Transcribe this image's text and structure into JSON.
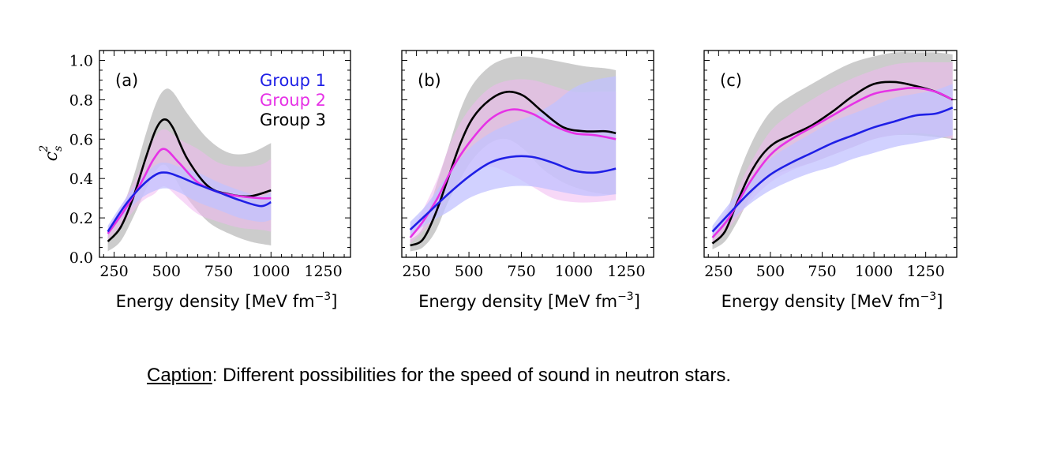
{
  "caption": {
    "label": "Caption",
    "text": ": Different possibilities for the speed of sound in neutron stars."
  },
  "y_label_main": "c",
  "y_label_sub": "s",
  "y_label_sup": "2",
  "colors": {
    "group1": "#1f1fe6",
    "group2": "#e632e6",
    "group3": "#000000"
  },
  "chart_data": [
    {
      "type": "line",
      "panel": "(a)",
      "xlabel": "Energy density [MeV fm",
      "xlabel_sup": "−3",
      "xlabel_end": "]",
      "xlim": [
        180,
        1380
      ],
      "ylim": [
        0.0,
        1.05
      ],
      "xticks": [
        250,
        500,
        750,
        1000,
        1250
      ],
      "yticks": [
        "0.0",
        "0.2",
        "0.4",
        "0.6",
        "0.8",
        "1.0"
      ],
      "legend": [
        "Group 1",
        "Group 2",
        "Group 3"
      ],
      "legend_position": "top-right",
      "series": [
        {
          "name": "Group 1",
          "color": "#1f1fe6",
          "x": [
            220,
            300,
            380,
            450,
            500,
            560,
            650,
            750,
            850,
            950,
            1000
          ],
          "y": [
            0.13,
            0.26,
            0.36,
            0.42,
            0.43,
            0.41,
            0.37,
            0.33,
            0.29,
            0.26,
            0.28
          ],
          "lower": [
            0.11,
            0.22,
            0.3,
            0.34,
            0.35,
            0.33,
            0.28,
            0.24,
            0.2,
            0.18,
            0.19
          ],
          "upper": [
            0.16,
            0.29,
            0.4,
            0.47,
            0.48,
            0.46,
            0.43,
            0.38,
            0.34,
            0.31,
            0.33
          ]
        },
        {
          "name": "Group 2",
          "color": "#e632e6",
          "x": [
            220,
            300,
            380,
            440,
            490,
            560,
            650,
            750,
            850,
            950,
            1000
          ],
          "y": [
            0.12,
            0.24,
            0.38,
            0.5,
            0.55,
            0.48,
            0.38,
            0.33,
            0.31,
            0.3,
            0.3
          ],
          "lower": [
            0.09,
            0.18,
            0.28,
            0.32,
            0.36,
            0.3,
            0.22,
            0.18,
            0.15,
            0.14,
            0.13
          ],
          "upper": [
            0.15,
            0.29,
            0.46,
            0.6,
            0.65,
            0.6,
            0.55,
            0.48,
            0.46,
            0.47,
            0.5
          ]
        },
        {
          "name": "Group 3",
          "color": "#000000",
          "x": [
            220,
            280,
            340,
            400,
            450,
            490,
            530,
            600,
            700,
            800,
            900,
            1000
          ],
          "y": [
            0.08,
            0.15,
            0.3,
            0.5,
            0.65,
            0.7,
            0.66,
            0.5,
            0.36,
            0.32,
            0.31,
            0.34
          ],
          "lower": [
            0.03,
            0.08,
            0.2,
            0.34,
            0.44,
            0.47,
            0.42,
            0.3,
            0.18,
            0.12,
            0.08,
            0.06
          ],
          "upper": [
            0.13,
            0.23,
            0.4,
            0.62,
            0.78,
            0.85,
            0.84,
            0.73,
            0.6,
            0.53,
            0.53,
            0.58
          ]
        }
      ]
    },
    {
      "type": "line",
      "panel": "(b)",
      "xlabel": "Energy density [MeV fm",
      "xlabel_sup": "−3",
      "xlabel_end": "]",
      "xlim": [
        180,
        1380
      ],
      "ylim": [
        0.0,
        1.05
      ],
      "xticks": [
        250,
        500,
        750,
        1000,
        1250
      ],
      "series": [
        {
          "name": "Group 1",
          "color": "#1f1fe6",
          "x": [
            220,
            300,
            400,
            500,
            600,
            700,
            800,
            900,
            1000,
            1100,
            1200
          ],
          "y": [
            0.14,
            0.22,
            0.32,
            0.41,
            0.48,
            0.51,
            0.51,
            0.48,
            0.44,
            0.43,
            0.45
          ],
          "lower": [
            0.11,
            0.17,
            0.23,
            0.3,
            0.34,
            0.36,
            0.36,
            0.34,
            0.32,
            0.31,
            0.32
          ],
          "upper": [
            0.18,
            0.27,
            0.42,
            0.55,
            0.63,
            0.68,
            0.72,
            0.78,
            0.86,
            0.9,
            0.92
          ]
        },
        {
          "name": "Group 2",
          "color": "#e632e6",
          "x": [
            220,
            280,
            350,
            420,
            500,
            600,
            700,
            800,
            900,
            1000,
            1100,
            1200
          ],
          "y": [
            0.1,
            0.18,
            0.3,
            0.45,
            0.58,
            0.7,
            0.75,
            0.73,
            0.67,
            0.63,
            0.62,
            0.6
          ],
          "lower": [
            0.07,
            0.13,
            0.22,
            0.33,
            0.42,
            0.46,
            0.42,
            0.36,
            0.3,
            0.28,
            0.28,
            0.29
          ],
          "upper": [
            0.13,
            0.24,
            0.4,
            0.6,
            0.75,
            0.86,
            0.9,
            0.9,
            0.87,
            0.84,
            0.84,
            0.84
          ]
        },
        {
          "name": "Group 3",
          "color": "#000000",
          "x": [
            220,
            280,
            340,
            400,
            460,
            520,
            600,
            680,
            760,
            850,
            950,
            1050,
            1150,
            1200
          ],
          "y": [
            0.06,
            0.09,
            0.22,
            0.4,
            0.58,
            0.71,
            0.8,
            0.84,
            0.82,
            0.74,
            0.66,
            0.64,
            0.64,
            0.63
          ],
          "lower": [
            0.03,
            0.05,
            0.13,
            0.28,
            0.4,
            0.5,
            0.58,
            0.6,
            0.55,
            0.45,
            0.38,
            0.34,
            0.32,
            0.32
          ],
          "upper": [
            0.09,
            0.15,
            0.35,
            0.55,
            0.75,
            0.88,
            0.97,
            1.01,
            1.02,
            1.01,
            0.99,
            0.97,
            0.96,
            0.95
          ]
        }
      ]
    },
    {
      "type": "line",
      "panel": "(c)",
      "xlabel": "Energy density [MeV fm",
      "xlabel_sup": "−3",
      "xlabel_end": "]",
      "xlim": [
        180,
        1400
      ],
      "ylim": [
        0.0,
        1.05
      ],
      "xticks": [
        250,
        500,
        750,
        1000,
        1250
      ],
      "series": [
        {
          "name": "Group 1",
          "color": "#1f1fe6",
          "x": [
            220,
            300,
            400,
            500,
            600,
            700,
            800,
            900,
            1000,
            1100,
            1200,
            1300,
            1380
          ],
          "y": [
            0.13,
            0.22,
            0.33,
            0.42,
            0.48,
            0.53,
            0.58,
            0.62,
            0.66,
            0.69,
            0.72,
            0.73,
            0.76
          ],
          "lower": [
            0.1,
            0.18,
            0.27,
            0.34,
            0.39,
            0.43,
            0.46,
            0.5,
            0.53,
            0.56,
            0.58,
            0.6,
            0.62
          ],
          "upper": [
            0.16,
            0.27,
            0.39,
            0.5,
            0.57,
            0.63,
            0.69,
            0.73,
            0.77,
            0.81,
            0.83,
            0.85,
            0.88
          ]
        },
        {
          "name": "Group 2",
          "color": "#e632e6",
          "x": [
            220,
            300,
            400,
            500,
            600,
            700,
            800,
            900,
            1000,
            1100,
            1200,
            1300,
            1380
          ],
          "y": [
            0.1,
            0.2,
            0.38,
            0.52,
            0.6,
            0.66,
            0.72,
            0.78,
            0.83,
            0.85,
            0.86,
            0.84,
            0.8
          ],
          "lower": [
            0.07,
            0.15,
            0.28,
            0.38,
            0.44,
            0.48,
            0.52,
            0.56,
            0.6,
            0.62,
            0.63,
            0.62,
            0.6
          ],
          "upper": [
            0.13,
            0.26,
            0.47,
            0.64,
            0.73,
            0.8,
            0.86,
            0.91,
            0.95,
            0.98,
            0.99,
            0.99,
            0.99
          ]
        },
        {
          "name": "Group 3",
          "color": "#000000",
          "x": [
            220,
            280,
            340,
            400,
            460,
            520,
            600,
            700,
            800,
            900,
            1000,
            1100,
            1200,
            1300,
            1380
          ],
          "y": [
            0.07,
            0.13,
            0.28,
            0.42,
            0.52,
            0.58,
            0.62,
            0.67,
            0.74,
            0.82,
            0.88,
            0.89,
            0.87,
            0.84,
            0.8
          ],
          "lower": [
            0.04,
            0.08,
            0.18,
            0.3,
            0.38,
            0.42,
            0.45,
            0.48,
            0.52,
            0.56,
            0.6,
            0.62,
            0.62,
            0.61,
            0.6
          ],
          "upper": [
            0.11,
            0.2,
            0.4,
            0.56,
            0.68,
            0.76,
            0.82,
            0.88,
            0.94,
            0.99,
            1.02,
            1.04,
            1.04,
            1.04,
            1.03
          ]
        }
      ]
    }
  ]
}
